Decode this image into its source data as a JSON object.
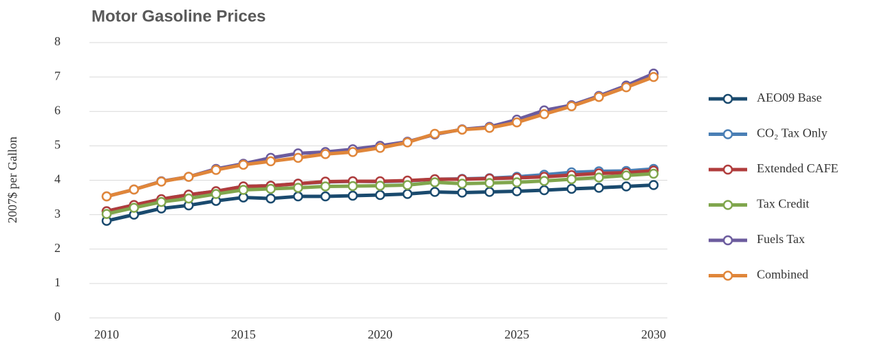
{
  "chart_data": {
    "type": "line",
    "title": "Motor Gasoline Prices",
    "y_label": "2007$ per Gallon",
    "x": [
      2010,
      2011,
      2012,
      2013,
      2014,
      2015,
      2016,
      2017,
      2018,
      2019,
      2020,
      2021,
      2022,
      2023,
      2024,
      2025,
      2026,
      2027,
      2028,
      2029,
      2030
    ],
    "xlim": [
      2010,
      2030
    ],
    "xticks": [
      2010,
      2015,
      2020,
      2025,
      2030
    ],
    "ylim": [
      0,
      8
    ],
    "yticks": [
      0,
      1,
      2,
      3,
      4,
      5,
      6,
      7,
      8
    ],
    "grid": true,
    "legend": "right",
    "series": [
      {
        "name": "AEO09 Base",
        "color": "#1a4a6e",
        "values": [
          2.82,
          3.0,
          3.18,
          3.27,
          3.4,
          3.5,
          3.47,
          3.53,
          3.53,
          3.55,
          3.57,
          3.6,
          3.66,
          3.64,
          3.66,
          3.68,
          3.71,
          3.75,
          3.78,
          3.82,
          3.86
        ]
      },
      {
        "name": "CO₂ Tax Only",
        "color": "#4a7fb5",
        "values": [
          3.1,
          3.28,
          3.45,
          3.58,
          3.68,
          3.82,
          3.84,
          3.9,
          3.95,
          3.97,
          3.96,
          3.98,
          4.03,
          4.04,
          4.06,
          4.1,
          4.16,
          4.23,
          4.26,
          4.27,
          4.33
        ]
      },
      {
        "name": "Extended CAFE",
        "color": "#b03c3c",
        "values": [
          3.1,
          3.28,
          3.45,
          3.58,
          3.68,
          3.82,
          3.84,
          3.9,
          3.96,
          3.97,
          3.97,
          3.99,
          4.03,
          4.03,
          4.05,
          4.07,
          4.1,
          4.15,
          4.2,
          4.22,
          4.28
        ]
      },
      {
        "name": "Tax Credit",
        "color": "#80a64d",
        "values": [
          3.02,
          3.2,
          3.37,
          3.47,
          3.6,
          3.72,
          3.75,
          3.78,
          3.82,
          3.83,
          3.84,
          3.86,
          3.94,
          3.9,
          3.92,
          3.94,
          3.98,
          4.03,
          4.08,
          4.14,
          4.19
        ]
      },
      {
        "name": "Fuels Tax",
        "color": "#6c5c9e",
        "values": [
          3.53,
          3.73,
          3.97,
          4.1,
          4.33,
          4.48,
          4.65,
          4.78,
          4.82,
          4.9,
          5.0,
          5.12,
          5.33,
          5.48,
          5.55,
          5.76,
          6.03,
          6.18,
          6.45,
          6.75,
          7.1
        ]
      },
      {
        "name": "Combined",
        "color": "#e0863a",
        "values": [
          3.53,
          3.73,
          3.96,
          4.1,
          4.3,
          4.45,
          4.55,
          4.65,
          4.76,
          4.82,
          4.94,
          5.1,
          5.35,
          5.47,
          5.52,
          5.68,
          5.92,
          6.15,
          6.42,
          6.7,
          7.0
        ]
      }
    ]
  }
}
